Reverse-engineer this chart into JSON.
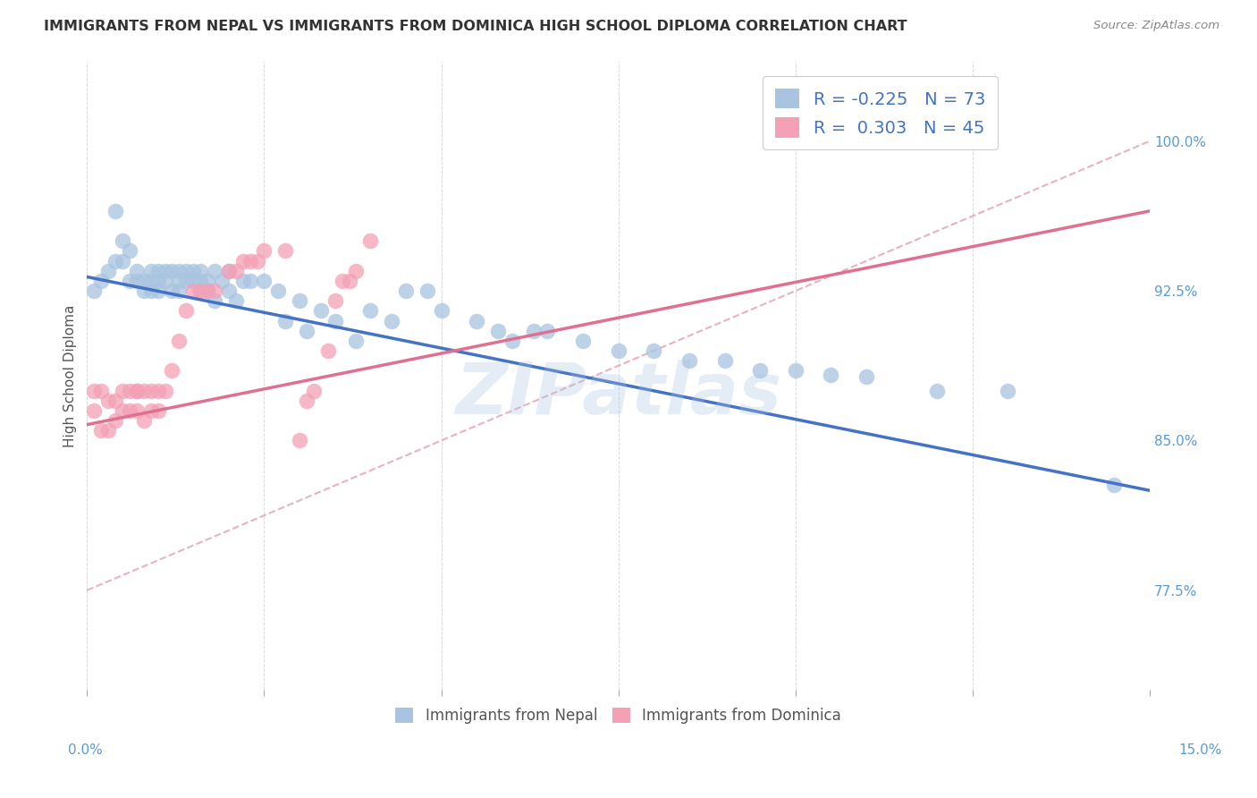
{
  "title": "IMMIGRANTS FROM NEPAL VS IMMIGRANTS FROM DOMINICA HIGH SCHOOL DIPLOMA CORRELATION CHART",
  "source": "Source: ZipAtlas.com",
  "ylabel": "High School Diploma",
  "yticks": [
    "77.5%",
    "85.0%",
    "92.5%",
    "100.0%"
  ],
  "ytick_values": [
    0.775,
    0.85,
    0.925,
    1.0
  ],
  "xlim": [
    0.0,
    0.15
  ],
  "ylim": [
    0.725,
    1.04
  ],
  "legend_r_nepal": "-0.225",
  "legend_n_nepal": "73",
  "legend_r_dominica": "0.303",
  "legend_n_dominica": "45",
  "color_nepal": "#a8c4e0",
  "color_dominica": "#f4a0b5",
  "color_nepal_line": "#4472c4",
  "color_dominica_line": "#e07090",
  "color_diagonal": "#e0a0b0",
  "watermark": "ZIPatlas",
  "nepal_scatter_x": [
    0.001,
    0.002,
    0.003,
    0.004,
    0.004,
    0.005,
    0.005,
    0.006,
    0.006,
    0.007,
    0.007,
    0.008,
    0.008,
    0.009,
    0.009,
    0.009,
    0.01,
    0.01,
    0.01,
    0.011,
    0.011,
    0.012,
    0.012,
    0.013,
    0.013,
    0.013,
    0.014,
    0.014,
    0.015,
    0.015,
    0.016,
    0.016,
    0.016,
    0.017,
    0.017,
    0.018,
    0.018,
    0.019,
    0.02,
    0.02,
    0.021,
    0.022,
    0.023,
    0.025,
    0.027,
    0.028,
    0.03,
    0.031,
    0.033,
    0.035,
    0.038,
    0.04,
    0.043,
    0.045,
    0.048,
    0.05,
    0.055,
    0.058,
    0.06,
    0.063,
    0.065,
    0.07,
    0.075,
    0.08,
    0.085,
    0.09,
    0.095,
    0.1,
    0.105,
    0.11,
    0.12,
    0.13,
    0.145
  ],
  "nepal_scatter_y": [
    0.925,
    0.93,
    0.935,
    0.94,
    0.965,
    0.95,
    0.94,
    0.93,
    0.945,
    0.935,
    0.93,
    0.93,
    0.925,
    0.93,
    0.935,
    0.925,
    0.935,
    0.93,
    0.925,
    0.935,
    0.93,
    0.935,
    0.925,
    0.935,
    0.93,
    0.925,
    0.935,
    0.93,
    0.93,
    0.935,
    0.93,
    0.925,
    0.935,
    0.93,
    0.925,
    0.935,
    0.92,
    0.93,
    0.935,
    0.925,
    0.92,
    0.93,
    0.93,
    0.93,
    0.925,
    0.91,
    0.92,
    0.905,
    0.915,
    0.91,
    0.9,
    0.915,
    0.91,
    0.925,
    0.925,
    0.915,
    0.91,
    0.905,
    0.9,
    0.905,
    0.905,
    0.9,
    0.895,
    0.895,
    0.89,
    0.89,
    0.885,
    0.885,
    0.883,
    0.882,
    0.875,
    0.875,
    0.828
  ],
  "dominica_scatter_x": [
    0.001,
    0.001,
    0.002,
    0.002,
    0.003,
    0.003,
    0.004,
    0.004,
    0.005,
    0.005,
    0.006,
    0.006,
    0.007,
    0.007,
    0.007,
    0.008,
    0.008,
    0.009,
    0.009,
    0.01,
    0.01,
    0.011,
    0.012,
    0.013,
    0.014,
    0.015,
    0.016,
    0.017,
    0.018,
    0.02,
    0.021,
    0.022,
    0.023,
    0.024,
    0.025,
    0.028,
    0.03,
    0.031,
    0.032,
    0.034,
    0.035,
    0.036,
    0.037,
    0.038,
    0.04
  ],
  "dominica_scatter_y": [
    0.875,
    0.865,
    0.875,
    0.855,
    0.87,
    0.855,
    0.87,
    0.86,
    0.875,
    0.865,
    0.875,
    0.865,
    0.875,
    0.865,
    0.875,
    0.875,
    0.86,
    0.875,
    0.865,
    0.875,
    0.865,
    0.875,
    0.885,
    0.9,
    0.915,
    0.925,
    0.925,
    0.925,
    0.925,
    0.935,
    0.935,
    0.94,
    0.94,
    0.94,
    0.945,
    0.945,
    0.85,
    0.87,
    0.875,
    0.895,
    0.92,
    0.93,
    0.93,
    0.935,
    0.95
  ],
  "nepal_line_x": [
    0.0,
    0.15
  ],
  "nepal_line_y": [
    0.932,
    0.825
  ],
  "dominica_line_x": [
    0.0,
    0.15
  ],
  "dominica_line_y": [
    0.858,
    0.965
  ],
  "diagonal_line_x": [
    0.0,
    0.15
  ],
  "diagonal_line_y": [
    0.775,
    1.0
  ]
}
